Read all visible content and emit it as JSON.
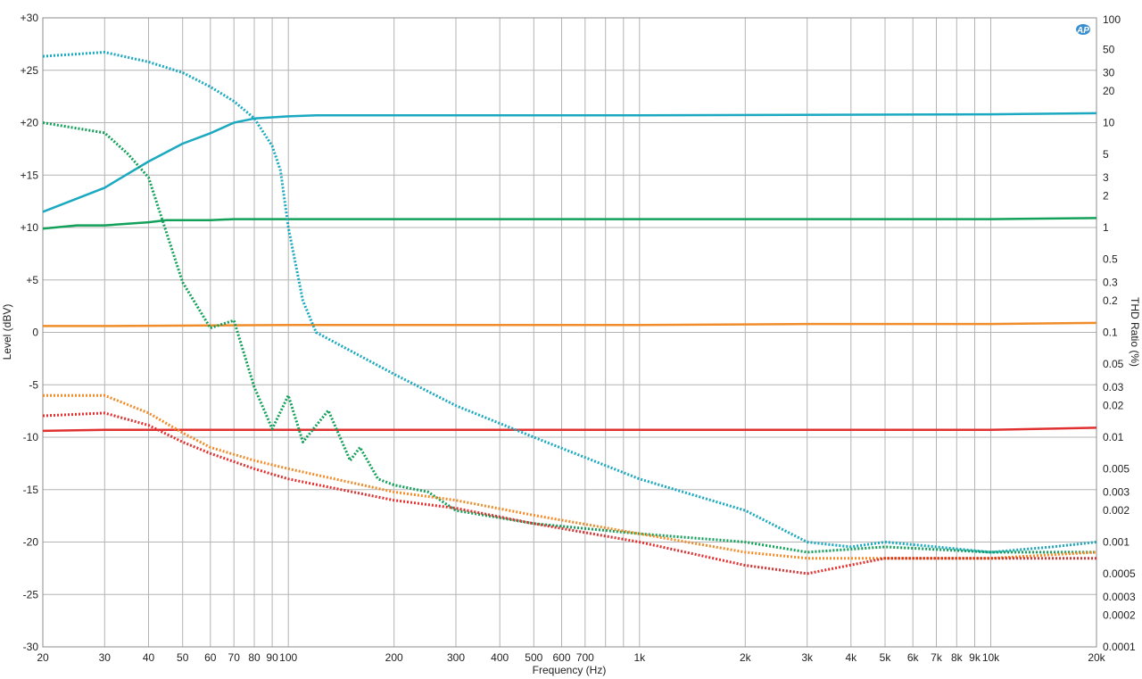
{
  "chart_data": {
    "type": "line",
    "title": "",
    "xlabel": "Frequency (Hz)",
    "ylabel": "Level (dBV)",
    "y2label": "THD Ratio (%)",
    "x_scale": "log",
    "xlim": [
      20,
      20000
    ],
    "ylim": [
      -30,
      30
    ],
    "y2_scale": "log",
    "y2lim": [
      0.0001,
      100
    ],
    "grid": true,
    "logo_text": "AP",
    "x_ticks": [
      {
        "v": 20,
        "l": "20"
      },
      {
        "v": 30,
        "l": "30"
      },
      {
        "v": 40,
        "l": "40"
      },
      {
        "v": 50,
        "l": "50"
      },
      {
        "v": 60,
        "l": "60"
      },
      {
        "v": 70,
        "l": "70"
      },
      {
        "v": 80,
        "l": "80"
      },
      {
        "v": 90,
        "l": "90"
      },
      {
        "v": 100,
        "l": "100"
      },
      {
        "v": 200,
        "l": "200"
      },
      {
        "v": 300,
        "l": "300"
      },
      {
        "v": 400,
        "l": "400"
      },
      {
        "v": 500,
        "l": "500"
      },
      {
        "v": 600,
        "l": "600"
      },
      {
        "v": 700,
        "l": "700"
      },
      {
        "v": 1000,
        "l": "1k"
      },
      {
        "v": 2000,
        "l": "2k"
      },
      {
        "v": 3000,
        "l": "3k"
      },
      {
        "v": 4000,
        "l": "4k"
      },
      {
        "v": 5000,
        "l": "5k"
      },
      {
        "v": 6000,
        "l": "6k"
      },
      {
        "v": 7000,
        "l": "7k"
      },
      {
        "v": 8000,
        "l": "8k"
      },
      {
        "v": 9000,
        "l": "9k"
      },
      {
        "v": 10000,
        "l": "10k"
      },
      {
        "v": 20000,
        "l": "20k"
      }
    ],
    "x_grid": [
      20,
      30,
      40,
      50,
      60,
      70,
      80,
      90,
      100,
      200,
      300,
      400,
      500,
      600,
      700,
      800,
      900,
      1000,
      2000,
      3000,
      4000,
      5000,
      6000,
      7000,
      8000,
      9000,
      10000,
      20000
    ],
    "y_ticks": [
      {
        "v": 30,
        "l": "+30"
      },
      {
        "v": 25,
        "l": "+25"
      },
      {
        "v": 20,
        "l": "+20"
      },
      {
        "v": 15,
        "l": "+15"
      },
      {
        "v": 10,
        "l": "+10"
      },
      {
        "v": 5,
        "l": "+5"
      },
      {
        "v": 0,
        "l": "0"
      },
      {
        "v": -5,
        "l": "-5"
      },
      {
        "v": -10,
        "l": "-10"
      },
      {
        "v": -15,
        "l": "-15"
      },
      {
        "v": -20,
        "l": "-20"
      },
      {
        "v": -25,
        "l": "-25"
      },
      {
        "v": -30,
        "l": "-30"
      }
    ],
    "y2_ticks": [
      {
        "v": 100,
        "l": "100"
      },
      {
        "v": 50,
        "l": "50"
      },
      {
        "v": 30,
        "l": "30"
      },
      {
        "v": 20,
        "l": "20"
      },
      {
        "v": 10,
        "l": "10"
      },
      {
        "v": 5,
        "l": "5"
      },
      {
        "v": 3,
        "l": "3"
      },
      {
        "v": 2,
        "l": "2"
      },
      {
        "v": 1,
        "l": "1"
      },
      {
        "v": 0.5,
        "l": "0.5"
      },
      {
        "v": 0.3,
        "l": "0.3"
      },
      {
        "v": 0.2,
        "l": "0.2"
      },
      {
        "v": 0.1,
        "l": "0.1"
      },
      {
        "v": 0.05,
        "l": "0.05"
      },
      {
        "v": 0.03,
        "l": "0.03"
      },
      {
        "v": 0.02,
        "l": "0.02"
      },
      {
        "v": 0.01,
        "l": "0.01"
      },
      {
        "v": 0.005,
        "l": "0.005"
      },
      {
        "v": 0.003,
        "l": "0.003"
      },
      {
        "v": 0.002,
        "l": "0.002"
      },
      {
        "v": 0.001,
        "l": "0.001"
      },
      {
        "v": 0.0005,
        "l": "0.0005"
      },
      {
        "v": 0.0003,
        "l": "0.0003"
      },
      {
        "v": 0.0002,
        "l": "0.0002"
      },
      {
        "v": 0.0001,
        "l": "0.0001"
      }
    ],
    "series": [
      {
        "color": "#1aa9c0",
        "style": "solid",
        "axis": "left",
        "x": [
          20,
          30,
          40,
          50,
          60,
          70,
          80,
          100,
          120,
          200,
          1000,
          10000,
          20000
        ],
        "y": [
          11.5,
          13.8,
          16.3,
          18.0,
          19.0,
          20.0,
          20.4,
          20.6,
          20.7,
          20.7,
          20.7,
          20.8,
          20.9
        ]
      },
      {
        "color": "#13a05a",
        "style": "solid",
        "axis": "left",
        "x": [
          20,
          25,
          30,
          40,
          45,
          60,
          70,
          100,
          1000,
          5000,
          10000,
          20000
        ],
        "y": [
          9.9,
          10.2,
          10.2,
          10.5,
          10.7,
          10.7,
          10.8,
          10.8,
          10.8,
          10.8,
          10.8,
          10.9
        ]
      },
      {
        "color": "#f08c2a",
        "style": "solid",
        "axis": "left",
        "x": [
          20,
          30,
          100,
          1000,
          3000,
          10000,
          20000
        ],
        "y": [
          0.6,
          0.6,
          0.7,
          0.7,
          0.8,
          0.8,
          0.9
        ]
      },
      {
        "color": "#e03030",
        "style": "solid",
        "axis": "left",
        "x": [
          20,
          30,
          100,
          1000,
          10000,
          20000
        ],
        "y": [
          -9.4,
          -9.3,
          -9.3,
          -9.3,
          -9.3,
          -9.1
        ]
      },
      {
        "color": "#1aa9c0",
        "style": "dotted",
        "axis": "right",
        "x": [
          20,
          30,
          40,
          50,
          60,
          70,
          80,
          90,
          95,
          100,
          110,
          120,
          200,
          300,
          500,
          1000,
          2000,
          3000,
          4000,
          5000,
          7000,
          10000,
          15000,
          20000
        ],
        "y": [
          43,
          47,
          38,
          30,
          22,
          16,
          11,
          6,
          3.5,
          1.0,
          0.2,
          0.1,
          0.04,
          0.02,
          0.01,
          0.004,
          0.002,
          0.001,
          0.0009,
          0.001,
          0.0009,
          0.0008,
          0.0009,
          0.001
        ]
      },
      {
        "color": "#13a05a",
        "style": "dotted",
        "axis": "right",
        "x": [
          20,
          30,
          35,
          40,
          50,
          60,
          70,
          80,
          90,
          100,
          110,
          130,
          150,
          160,
          180,
          200,
          250,
          300,
          500,
          1000,
          2000,
          3000,
          5000,
          10000,
          20000
        ],
        "y": [
          10,
          8,
          5,
          3,
          0.3,
          0.11,
          0.13,
          0.03,
          0.012,
          0.025,
          0.009,
          0.018,
          0.006,
          0.008,
          0.004,
          0.0035,
          0.003,
          0.002,
          0.0015,
          0.0012,
          0.001,
          0.0008,
          0.0009,
          0.0008,
          0.0008
        ]
      },
      {
        "color": "#f08c2a",
        "style": "dotted",
        "axis": "right",
        "x": [
          20,
          30,
          40,
          50,
          60,
          80,
          100,
          200,
          300,
          500,
          1000,
          2000,
          3000,
          5000,
          10000,
          20000
        ],
        "y": [
          0.025,
          0.025,
          0.017,
          0.011,
          0.008,
          0.006,
          0.005,
          0.003,
          0.0025,
          0.0018,
          0.0012,
          0.0008,
          0.0007,
          0.0007,
          0.0007,
          0.0008
        ]
      },
      {
        "color": "#e03030",
        "style": "dotted",
        "axis": "right",
        "x": [
          20,
          30,
          40,
          50,
          60,
          80,
          100,
          200,
          300,
          500,
          1000,
          2000,
          3000,
          5000,
          10000,
          20000
        ],
        "y": [
          0.016,
          0.017,
          0.013,
          0.009,
          0.007,
          0.005,
          0.004,
          0.0025,
          0.0021,
          0.0015,
          0.001,
          0.0006,
          0.0005,
          0.0007,
          0.0007,
          0.0007
        ]
      }
    ]
  }
}
